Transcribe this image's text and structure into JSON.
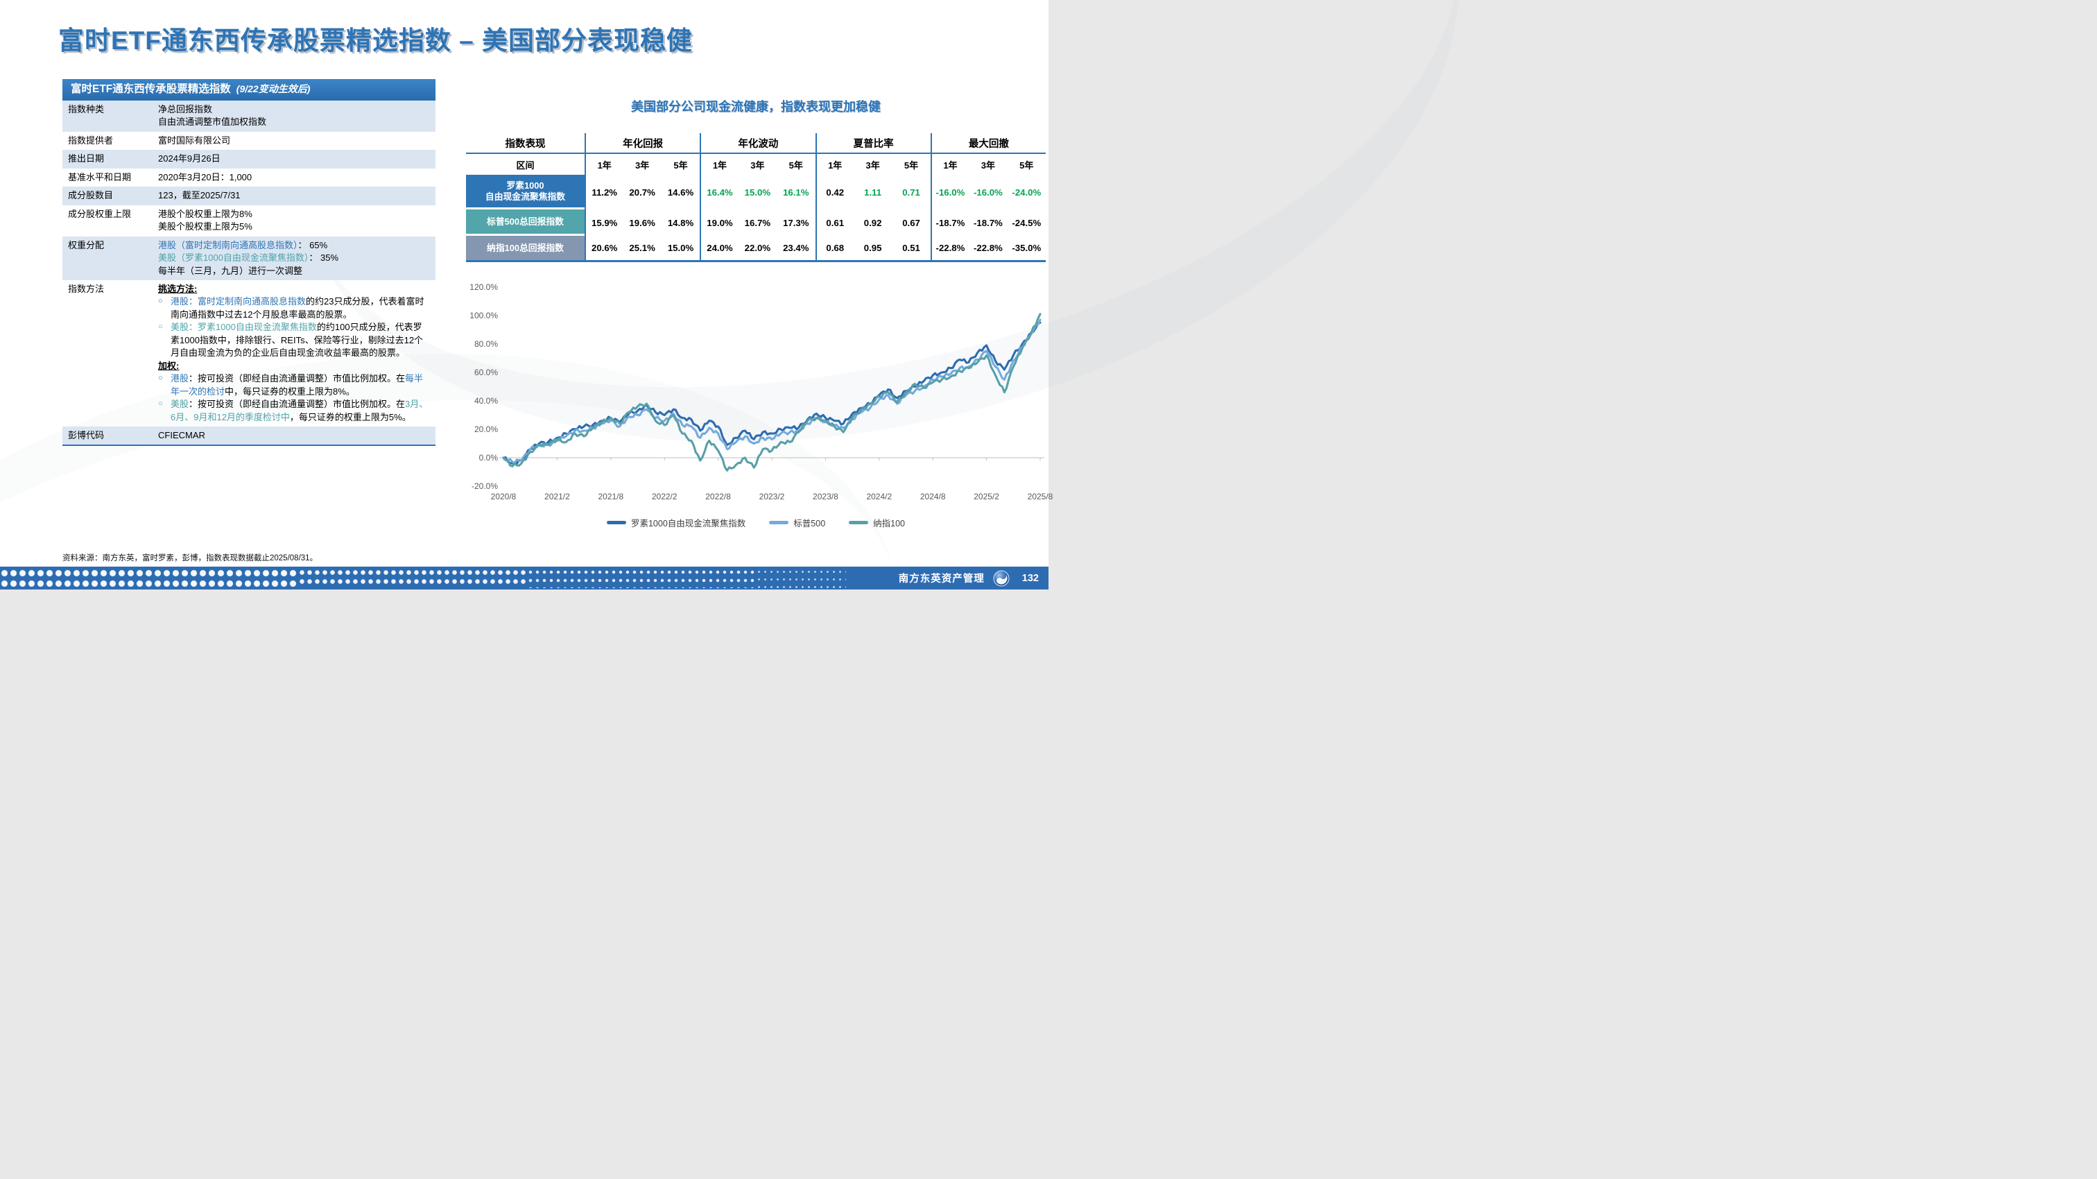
{
  "slide": {
    "title": "富时ETF通东西传承股票精选指数 – 美国部分表现稳健",
    "source_note": "资料来源：南方东英，富时罗素，彭博，指数表现数据截止2025/08/31。",
    "footer": {
      "company": "南方东英资产管理",
      "page": "132",
      "logo": "soochow-swirl-logo"
    }
  },
  "colors": {
    "accent_blue": "#2e74b5",
    "hk_blue": "#2e75b6",
    "us_teal": "#4fa3a8",
    "green": "#00a551",
    "shade_row": "#dbe5f1",
    "row_russell_bg": "#2e75b6",
    "row_sp_bg": "#52a5aa",
    "row_ndx_bg": "#8496b0",
    "line_russell": "#2d6cb0",
    "line_sp": "#74aadb",
    "line_ndx": "#58a0a8"
  },
  "info_table": {
    "header": {
      "title": "富时ETF通东西传承股票精选指数",
      "subtitle": "(9/22变动生效后)"
    },
    "rows": [
      {
        "label": "指数种类",
        "shade": true,
        "content": [
          {
            "kind": "line",
            "segs": [
              [
                "净总回报指数",
                ""
              ]
            ]
          },
          {
            "kind": "line",
            "segs": [
              [
                "自由流通调整市值加权指数",
                ""
              ]
            ]
          }
        ]
      },
      {
        "label": "指数提供者",
        "shade": false,
        "content": [
          {
            "kind": "line",
            "segs": [
              [
                "富时国际有限公司",
                ""
              ]
            ]
          }
        ]
      },
      {
        "label": "推出日期",
        "shade": true,
        "content": [
          {
            "kind": "line",
            "segs": [
              [
                "2024年9月26日",
                ""
              ]
            ]
          }
        ]
      },
      {
        "label": "基准水平和日期",
        "shade": false,
        "content": [
          {
            "kind": "line",
            "segs": [
              [
                "2020年3月20日：1,000",
                ""
              ]
            ]
          }
        ]
      },
      {
        "label": "成分股数目",
        "shade": true,
        "content": [
          {
            "kind": "line",
            "segs": [
              [
                "123，截至2025/7/31",
                ""
              ]
            ]
          }
        ]
      },
      {
        "label": "成分股权重上限",
        "shade": false,
        "content": [
          {
            "kind": "line",
            "segs": [
              [
                "港股个股权重上限为8%",
                ""
              ]
            ]
          },
          {
            "kind": "line",
            "segs": [
              [
                "美股个股权重上限为5%",
                ""
              ]
            ]
          }
        ]
      },
      {
        "label": "权重分配",
        "shade": true,
        "content": [
          {
            "kind": "line",
            "segs": [
              [
                "港股（富时定制南向通高股息指数）",
                "b"
              ],
              [
                "： 65%",
                ""
              ]
            ]
          },
          {
            "kind": "line",
            "segs": [
              [
                "美股（罗素1000自由现金流聚焦指数）",
                "t"
              ],
              [
                "： 35%",
                ""
              ]
            ]
          },
          {
            "kind": "line",
            "segs": [
              [
                "每半年（三月，九月）进行一次调整",
                ""
              ]
            ]
          }
        ]
      },
      {
        "label": "指数方法",
        "shade": false,
        "content": [
          {
            "kind": "line",
            "segs": [
              [
                "挑选方法: ",
                "u"
              ]
            ]
          },
          {
            "kind": "bullet",
            "bullet": "b",
            "segs": [
              [
                "港股：富时定制南向通高股息指数",
                "b"
              ],
              [
                "的约23只成分股，代表着富时南向通指数中过去12个月股息率最高的股票。",
                ""
              ]
            ]
          },
          {
            "kind": "bullet",
            "bullet": "t",
            "segs": [
              [
                "美股：罗素1000自由现金流聚焦指数",
                "t"
              ],
              [
                "的约100只成分股，代表罗素1000指数中，排除银行、REITs、保险等行业，剔除过去12个月自由现金流为负的企业后自由现金流收益率最高的股票。",
                ""
              ]
            ]
          },
          {
            "kind": "line",
            "segs": [
              [
                "加权: ",
                "u"
              ]
            ]
          },
          {
            "kind": "bullet",
            "bullet": "b",
            "segs": [
              [
                "港股",
                "b"
              ],
              [
                "：按可投资（即经自由流通量调整）市值比例加权。在",
                ""
              ],
              [
                "每半年一次的检讨",
                "b"
              ],
              [
                "中，每只证券的权重上限为8%。",
                ""
              ]
            ]
          },
          {
            "kind": "bullet",
            "bullet": "t",
            "segs": [
              [
                "美股",
                "t"
              ],
              [
                "：按可投资（即经自由流通量调整）市值比例加权。在",
                ""
              ],
              [
                "3月、6月、9月和12月的季度检讨中",
                "t"
              ],
              [
                "，每只证券的权重上限为5%。",
                ""
              ]
            ]
          }
        ]
      },
      {
        "label": "彭博代码",
        "shade": true,
        "last": true,
        "content": [
          {
            "kind": "line",
            "segs": [
              [
                "CFIECMAR",
                ""
              ]
            ]
          }
        ]
      }
    ]
  },
  "perf_table": {
    "heading": "美国部分公司现金流健康，指数表现更加稳健",
    "corner": "指数表现",
    "period_label": "区间",
    "groups": [
      "年化回报",
      "年化波动",
      "夏普比率",
      "最大回撤"
    ],
    "periods": [
      "1年",
      "3年",
      "5年"
    ],
    "rows": [
      {
        "name_lines": [
          "罗素1000",
          "自由现金流聚焦指数"
        ],
        "bg": "#2e75b6",
        "values": [
          [
            "11.2%",
            "20.7%",
            "14.6%"
          ],
          [
            "16.4%",
            "15.0%",
            "16.1%"
          ],
          [
            "0.42",
            "1.11",
            "0.71"
          ],
          [
            "-16.0%",
            "-16.0%",
            "-24.0%"
          ]
        ],
        "green": [
          [
            0,
            0,
            0
          ],
          [
            1,
            1,
            1
          ],
          [
            0,
            1,
            1
          ],
          [
            1,
            1,
            1
          ]
        ]
      },
      {
        "name_lines": [
          "标普500总回报指数"
        ],
        "bg": "#52a5aa",
        "values": [
          [
            "15.9%",
            "19.6%",
            "14.8%"
          ],
          [
            "19.0%",
            "16.7%",
            "17.3%"
          ],
          [
            "0.61",
            "0.92",
            "0.67"
          ],
          [
            "-18.7%",
            "-18.7%",
            "-24.5%"
          ]
        ],
        "green": [
          [
            0,
            0,
            0
          ],
          [
            0,
            0,
            0
          ],
          [
            0,
            0,
            0
          ],
          [
            0,
            0,
            0
          ]
        ]
      },
      {
        "name_lines": [
          "纳指100总回报指数"
        ],
        "bg": "#8496b0",
        "values": [
          [
            "20.6%",
            "25.1%",
            "15.0%"
          ],
          [
            "24.0%",
            "22.0%",
            "23.4%"
          ],
          [
            "0.68",
            "0.95",
            "0.51"
          ],
          [
            "-22.8%",
            "-22.8%",
            "-35.0%"
          ]
        ],
        "green": [
          [
            0,
            0,
            0
          ],
          [
            0,
            0,
            0
          ],
          [
            0,
            0,
            0
          ],
          [
            0,
            0,
            0
          ]
        ]
      }
    ]
  },
  "chart_data": {
    "type": "line",
    "title": "",
    "xlabel": "",
    "ylabel": "",
    "x_unit": "months from 2020/8 (one value per month)",
    "x_tick_labels": [
      "2020/8",
      "2021/2",
      "2021/8",
      "2022/2",
      "2022/8",
      "2023/2",
      "2023/8",
      "2024/2",
      "2024/8",
      "2025/2",
      "2025/8"
    ],
    "y_tick_labels": [
      "120.0%",
      "100.0%",
      "80.0%",
      "60.0%",
      "40.0%",
      "20.0%",
      "0.0%",
      "-20.0%"
    ],
    "ylim": [
      -20,
      120
    ],
    "grid": false,
    "legend_position": "bottom",
    "series": [
      {
        "name": "罗素1000自由现金流聚焦指数",
        "color": "#2d6cb0",
        "values": [
          0,
          -4,
          -2,
          6,
          10,
          11,
          14,
          17,
          20,
          22,
          23,
          26,
          28,
          25,
          31,
          33,
          37,
          32,
          30,
          34,
          28,
          27,
          19,
          26,
          22,
          9,
          14,
          19,
          13,
          18,
          17,
          20,
          21,
          21,
          27,
          31,
          28,
          26,
          24,
          31,
          35,
          38,
          44,
          48,
          42,
          47,
          50,
          54,
          58,
          60,
          63,
          69,
          67,
          74,
          79,
          68,
          62,
          72,
          80,
          88,
          95
        ]
      },
      {
        "name": "标普500",
        "color": "#74aadb",
        "values": [
          0,
          -3,
          -2,
          6,
          9,
          9,
          12,
          15,
          19,
          19,
          21,
          24,
          26,
          22,
          29,
          30,
          34,
          28,
          26,
          31,
          23,
          22,
          14,
          21,
          17,
          6,
          11,
          15,
          10,
          14,
          13,
          17,
          18,
          19,
          24,
          28,
          25,
          23,
          21,
          27,
          32,
          35,
          41,
          44,
          38,
          44,
          47,
          50,
          55,
          57,
          59,
          63,
          64,
          69,
          75,
          64,
          55,
          68,
          78,
          87,
          97
        ]
      },
      {
        "name": "纳指100",
        "color": "#58a0a8",
        "values": [
          0,
          -6,
          -4,
          4,
          9,
          9,
          13,
          11,
          17,
          15,
          21,
          25,
          28,
          24,
          32,
          36,
          38,
          26,
          23,
          30,
          17,
          12,
          -2,
          12,
          5,
          -9,
          -5,
          0,
          -7,
          6,
          5,
          11,
          11,
          18,
          26,
          28,
          26,
          22,
          18,
          28,
          34,
          38,
          43,
          46,
          39,
          46,
          52,
          49,
          53,
          55,
          57,
          61,
          63,
          67,
          72,
          58,
          46,
          64,
          77,
          88,
          101
        ]
      }
    ]
  }
}
